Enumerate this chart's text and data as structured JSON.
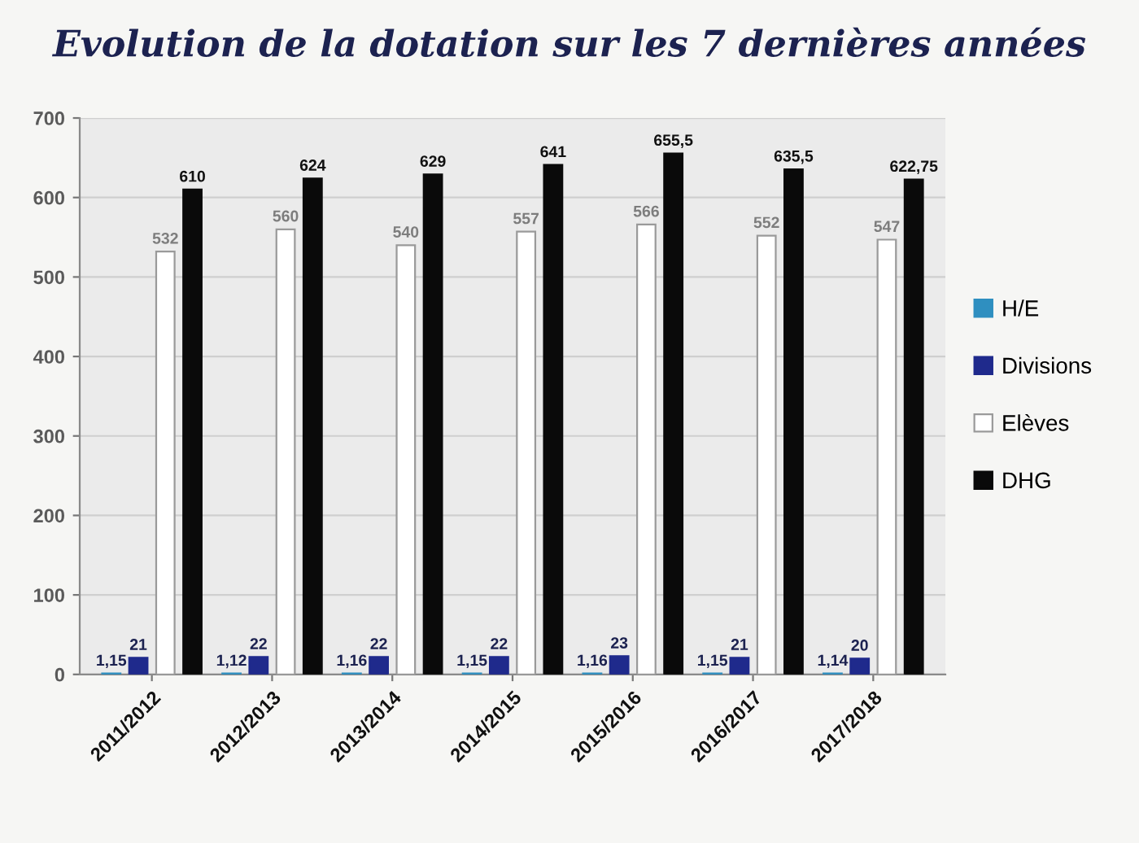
{
  "chart_data": {
    "type": "bar",
    "title": "Evolution de la dotation sur les 7 dernières années",
    "categories": [
      "2011/2012",
      "2012/2013",
      "2013/2014",
      "2014/2015",
      "2015/2016",
      "2016/2017",
      "2017/2018"
    ],
    "series": [
      {
        "name": "H/E",
        "color": "#2f8fc0",
        "values": [
          1.15,
          1.12,
          1.16,
          1.15,
          1.16,
          1.15,
          1.14
        ],
        "value_labels": [
          "1,15",
          "1,12",
          "1,16",
          "1,15",
          "1,16",
          "1,15",
          "1,14"
        ]
      },
      {
        "name": "Divisions",
        "color": "#1f2a8c",
        "values": [
          21,
          22,
          22,
          22,
          23,
          21,
          20
        ],
        "value_labels": [
          "21",
          "22",
          "22",
          "22",
          "23",
          "21",
          "20"
        ]
      },
      {
        "name": "Elèves",
        "color": "#ffffff",
        "values": [
          532,
          560,
          540,
          557,
          566,
          552,
          547
        ],
        "value_labels": [
          "532",
          "560",
          "540",
          "557",
          "566",
          "552",
          "547"
        ]
      },
      {
        "name": "DHG",
        "color": "#0a0a0a",
        "values": [
          610,
          624,
          629,
          641,
          655.5,
          635.5,
          622.75
        ],
        "value_labels": [
          "610",
          "624",
          "629",
          "641",
          "655,5",
          "635,5",
          "622,75"
        ]
      }
    ],
    "ylim": [
      0,
      700
    ],
    "yticks": [
      0,
      100,
      200,
      300,
      400,
      500,
      600,
      700
    ],
    "grid": "y",
    "legend": "right"
  }
}
